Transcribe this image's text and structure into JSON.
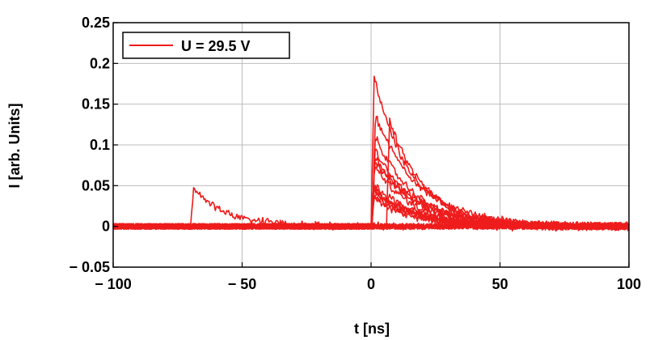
{
  "chart_data": {
    "type": "line",
    "title": "",
    "xlabel": "t [ns]",
    "ylabel": "I [arb. Units]",
    "xlim": [
      -100,
      100
    ],
    "ylim": [
      -0.05,
      0.25
    ],
    "x_ticks": [
      -100,
      -50,
      0,
      50,
      100
    ],
    "x_tick_labels": [
      "− 100",
      "− 50",
      "0",
      "50",
      "100"
    ],
    "y_ticks": [
      -0.05,
      0,
      0.05,
      0.1,
      0.15,
      0.2,
      0.25
    ],
    "y_tick_labels": [
      "− 0.05",
      "0",
      "0.05",
      "0.1",
      "0.15",
      "0.2",
      "0.25"
    ],
    "grid": true,
    "legend_position": "top-left",
    "legend_label": "U = 29.5 V",
    "line_color": "#ee1c1c",
    "pulses": [
      {
        "onset_ns": -70,
        "peak": 0.05,
        "decay_ns": 13
      },
      {
        "onset_ns": 0,
        "peak": 0.2,
        "decay_ns": 14
      },
      {
        "onset_ns": 0.5,
        "peak": 0.146,
        "decay_ns": 17
      },
      {
        "onset_ns": 6,
        "peak": 0.14,
        "decay_ns": 14
      },
      {
        "onset_ns": 0.5,
        "peak": 0.12,
        "decay_ns": 15
      },
      {
        "onset_ns": 0.3,
        "peak": 0.1,
        "decay_ns": 16
      },
      {
        "onset_ns": 0.3,
        "peak": 0.092,
        "decay_ns": 15
      },
      {
        "onset_ns": 0.2,
        "peak": 0.088,
        "decay_ns": 17
      },
      {
        "onset_ns": 0.2,
        "peak": 0.08,
        "decay_ns": 15
      },
      {
        "onset_ns": 0.1,
        "peak": 0.055,
        "decay_ns": 16
      },
      {
        "onset_ns": 0.1,
        "peak": 0.05,
        "decay_ns": 15
      },
      {
        "onset_ns": 0.1,
        "peak": 0.047,
        "decay_ns": 16
      },
      {
        "onset_ns": 0.1,
        "peak": 0.045,
        "decay_ns": 14
      },
      {
        "onset_ns": 0.1,
        "peak": 0.042,
        "decay_ns": 15
      },
      {
        "onset_ns": 0.1,
        "peak": 0.038,
        "decay_ns": 14
      }
    ],
    "baseline_traces": 6,
    "noise_amplitude": 0.0035
  }
}
